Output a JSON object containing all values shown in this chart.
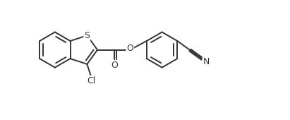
{
  "bg_color": "#ffffff",
  "line_color": "#333333",
  "line_width": 1.4,
  "font_size": 8.5,
  "figsize": [
    4.11,
    1.7
  ],
  "dpi": 100,
  "xlim": [
    0,
    8.2
  ],
  "ylim": [
    0,
    3.5
  ]
}
